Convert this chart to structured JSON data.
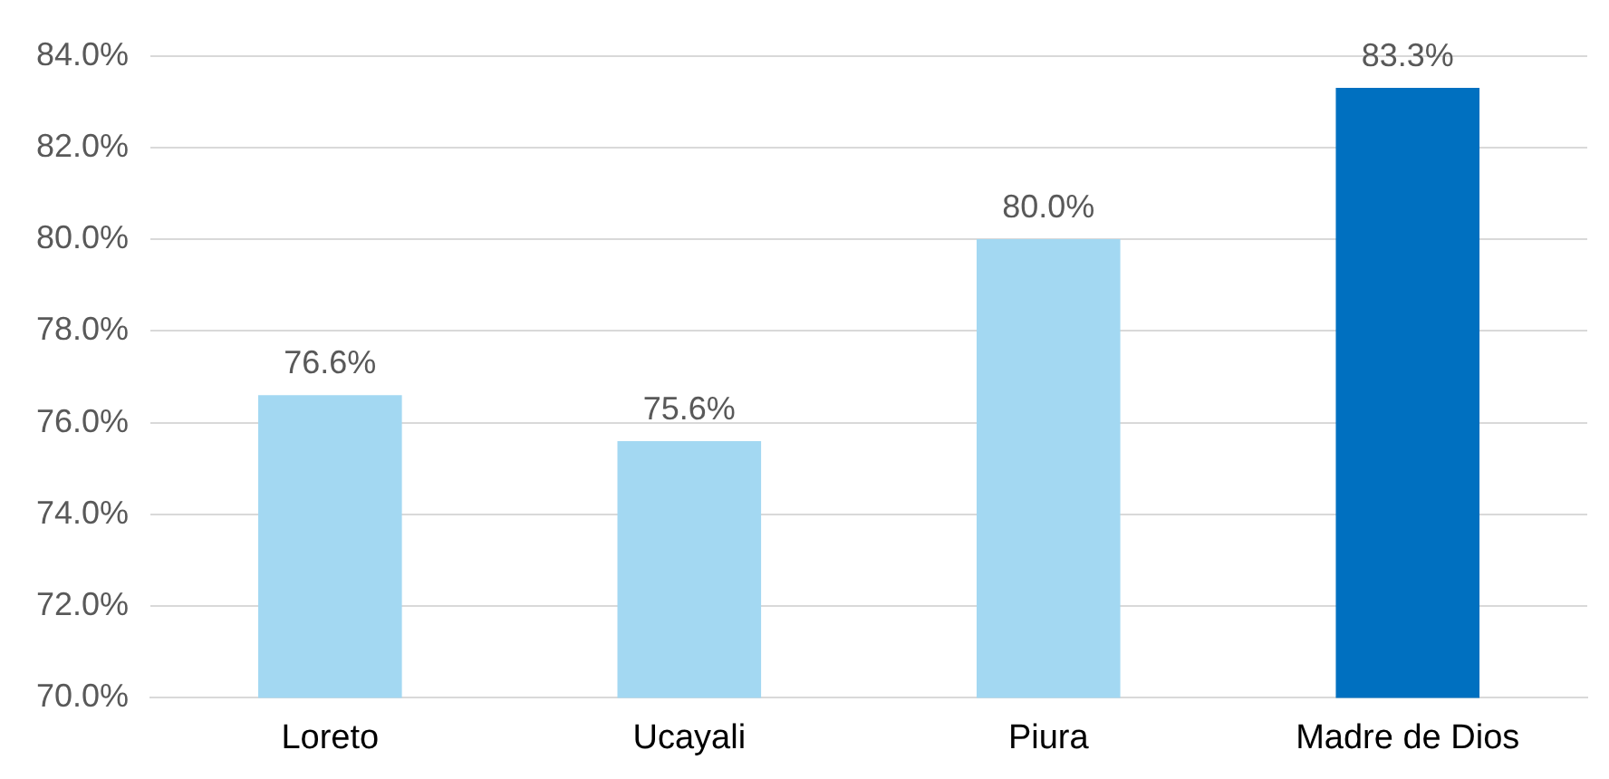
{
  "chart_data": {
    "type": "bar",
    "categories": [
      "Loreto",
      "Ucayali",
      "Piura",
      "Madre de Dios"
    ],
    "values": [
      76.6,
      75.6,
      80.0,
      83.3
    ],
    "colors": [
      "#a3d8f2",
      "#a3d8f2",
      "#a3d8f2",
      "#0070c0"
    ],
    "value_labels": [
      "76.6%",
      "75.6%",
      "80.0%",
      "83.3%"
    ],
    "ylim": [
      70,
      84
    ],
    "yticks": [
      {
        "value": 70,
        "label": "70.0%"
      },
      {
        "value": 72,
        "label": "72.0%"
      },
      {
        "value": 74,
        "label": "74.0%"
      },
      {
        "value": 76,
        "label": "76.0%"
      },
      {
        "value": 78,
        "label": "78.0%"
      },
      {
        "value": 80,
        "label": "80.0%"
      },
      {
        "value": 82,
        "label": "82.0%"
      },
      {
        "value": 84,
        "label": "84.0%"
      }
    ],
    "grid": "y",
    "legend": false
  }
}
